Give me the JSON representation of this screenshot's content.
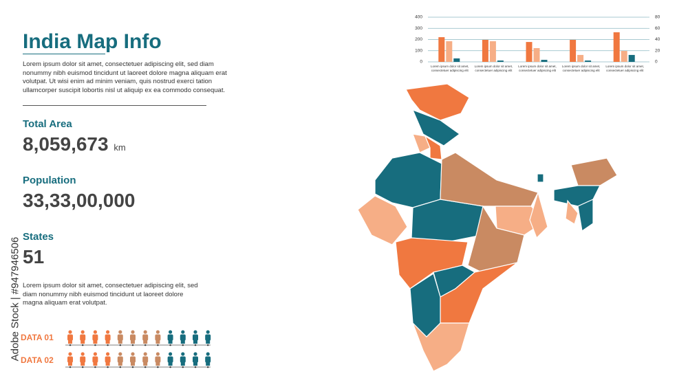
{
  "header": {
    "title": "India Map Info",
    "intro": "Lorem ipsum dolor sit amet, consectetuer adipiscing elit, sed diam nonummy nibh euismod tincidunt ut laoreet dolore magna aliquam erat volutpat. Ut wisi enim ad minim veniam, quis nostrud exerci tation ullamcorper suscipit lobortis nisl ut aliquip ex ea commodo consequat."
  },
  "stats": [
    {
      "label": "Total Area",
      "value": "8,059,673",
      "unit": "km"
    },
    {
      "label": "Population",
      "value": "33,33,00,000"
    },
    {
      "label": "States",
      "value": "51"
    }
  ],
  "description": "Lorem ipsum dolor sit amet, consectetuer adipiscing elit, sed diam nonummy nibh euismod tincidunt ut laoreet dolore magna aliquam erat volutpat.",
  "data_rows": [
    "DATA 01",
    "DATA 02"
  ],
  "watermark": "Adobe Stock | #947946506",
  "chart_data": {
    "type": "bar",
    "categories": [
      "Lorem ipsum dolor sit amet, consectetuer adipiscing elit",
      "Lorem ipsum dolor sit amet, consectetuer adipiscing elit",
      "Lorem ipsum dolor sit amet, consectetuer adipiscing elit",
      "Lorem ipsum dolor sit amet, consectetuer adipiscing elit",
      "Lorem ipsum dolor sit amet, consectetuer adipiscing elit"
    ],
    "series": [
      {
        "color": "#f07840",
        "values": [
          221,
          197,
          178,
          197,
          265
        ]
      },
      {
        "color": "#f6ae86",
        "values": [
          185,
          185,
          123,
          62,
          98
        ]
      },
      {
        "color": "#176d7e",
        "values": [
          31,
          12,
          18,
          12,
          62
        ]
      }
    ],
    "ylim": [
      0,
      400
    ],
    "yticks": [
      0,
      100,
      200,
      300,
      400
    ],
    "y2lim": [
      0,
      80
    ],
    "y2ticks": [
      0,
      20,
      40,
      60,
      80
    ],
    "grid": true
  }
}
